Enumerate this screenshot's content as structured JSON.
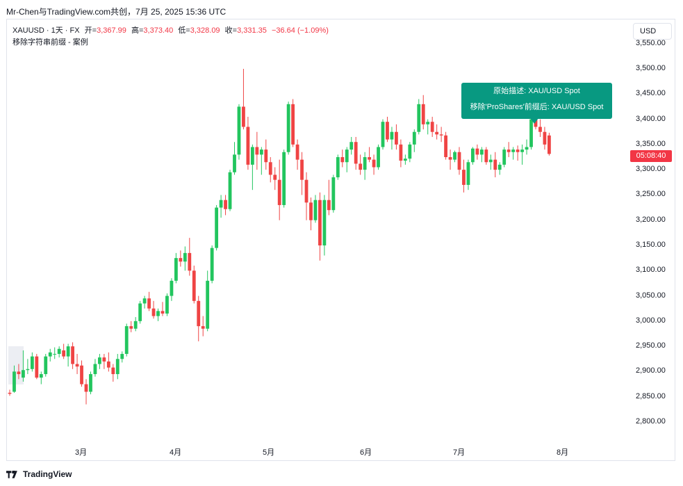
{
  "header": {
    "share_text": "Mr-Chen与TradingView.com共创，7月 25, 2025 15:36 UTC"
  },
  "legend": {
    "symbol": "XAUUSD · 1天 · FX",
    "open_label": "开=",
    "open_value": "3,367.99",
    "high_label": "高=",
    "high_value": "3,373.40",
    "low_label": "低=",
    "low_value": "3,328.09",
    "close_label": "收=",
    "close_value": "3,331.35",
    "change": "−36.64 (−1.09%)",
    "subtitle": "移除字符串前缀 - 案例"
  },
  "currency_button": "USD",
  "last_price_tag": "05:08:40",
  "tooltip": {
    "line1": "原始描述: XAU/USD Spot",
    "line2": "移除'ProShares'前缀后: XAU/USD Spot"
  },
  "footer": {
    "brand": "TradingView"
  },
  "colors": {
    "up": "#089981",
    "down": "#f23645",
    "candle_up": "#22c55e",
    "candle_down": "#ef4444"
  },
  "chart_data": {
    "type": "candlestick",
    "x_tick_labels": [
      "3月",
      "4月",
      "5月",
      "6月",
      "7月",
      "8月"
    ],
    "y_tick_labels": [
      "3,550.00",
      "3,500.00",
      "3,450.00",
      "3,400.00",
      "3,350.00",
      "3,300.00",
      "3,250.00",
      "3,200.00",
      "3,150.00",
      "3,100.00",
      "3,050.00",
      "3,000.00",
      "2,950.00",
      "2,900.00",
      "2,850.00",
      "2,800.00"
    ],
    "ylim": [
      2770,
      3580
    ],
    "candles": [
      [
        2858,
        2864,
        2852,
        2856
      ],
      [
        2860,
        2912,
        2858,
        2900
      ],
      [
        2900,
        2915,
        2885,
        2895
      ],
      [
        2888,
        2942,
        2880,
        2903
      ],
      [
        2903,
        2925,
        2895,
        2905
      ],
      [
        2905,
        2938,
        2900,
        2930
      ],
      [
        2930,
        2935,
        2885,
        2888
      ],
      [
        2888,
        2900,
        2875,
        2895
      ],
      [
        2895,
        2935,
        2890,
        2930
      ],
      [
        2930,
        2945,
        2920,
        2938
      ],
      [
        2935,
        2948,
        2925,
        2935
      ],
      [
        2935,
        2950,
        2928,
        2945
      ],
      [
        2942,
        2955,
        2925,
        2930
      ],
      [
        2930,
        2955,
        2910,
        2950
      ],
      [
        2950,
        2958,
        2905,
        2915
      ],
      [
        2915,
        2935,
        2895,
        2910
      ],
      [
        2912,
        2922,
        2870,
        2875
      ],
      [
        2875,
        2885,
        2835,
        2860
      ],
      [
        2860,
        2900,
        2855,
        2895
      ],
      [
        2895,
        2925,
        2890,
        2915
      ],
      [
        2915,
        2935,
        2905,
        2928
      ],
      [
        2928,
        2935,
        2905,
        2920
      ],
      [
        2920,
        2938,
        2900,
        2908
      ],
      [
        2908,
        2915,
        2880,
        2895
      ],
      [
        2895,
        2935,
        2885,
        2925
      ],
      [
        2925,
        2940,
        2918,
        2935
      ],
      [
        2935,
        2995,
        2930,
        2990
      ],
      [
        2990,
        3000,
        2978,
        2985
      ],
      [
        2985,
        3008,
        2980,
        3000
      ],
      [
        3000,
        3040,
        2995,
        3035
      ],
      [
        3035,
        3050,
        3025,
        3045
      ],
      [
        3045,
        3058,
        3020,
        3025
      ],
      [
        3025,
        3040,
        3005,
        3010
      ],
      [
        3010,
        3025,
        3000,
        3020
      ],
      [
        3020,
        3038,
        3010,
        3015
      ],
      [
        3015,
        3055,
        3010,
        3050
      ],
      [
        3050,
        3085,
        3040,
        3080
      ],
      [
        3080,
        3135,
        3075,
        3125
      ],
      [
        3125,
        3140,
        3108,
        3118
      ],
      [
        3118,
        3148,
        3100,
        3135
      ],
      [
        3135,
        3165,
        3090,
        3100
      ],
      [
        3100,
        3110,
        3035,
        3040
      ],
      [
        3040,
        3050,
        2960,
        2990
      ],
      [
        2990,
        3010,
        2970,
        2985
      ],
      [
        2985,
        3100,
        2980,
        3080
      ],
      [
        3080,
        3150,
        3075,
        3145
      ],
      [
        3145,
        3230,
        3140,
        3225
      ],
      [
        3225,
        3250,
        3205,
        3240
      ],
      [
        3240,
        3250,
        3210,
        3222
      ],
      [
        3222,
        3300,
        3218,
        3295
      ],
      [
        3295,
        3355,
        3290,
        3330
      ],
      [
        3330,
        3430,
        3320,
        3425
      ],
      [
        3425,
        3500,
        3380,
        3385
      ],
      [
        3385,
        3405,
        3300,
        3310
      ],
      [
        3310,
        3350,
        3260,
        3345
      ],
      [
        3345,
        3375,
        3300,
        3330
      ],
      [
        3330,
        3345,
        3290,
        3340
      ],
      [
        3340,
        3360,
        3300,
        3315
      ],
      [
        3315,
        3325,
        3275,
        3290
      ],
      [
        3290,
        3305,
        3260,
        3280
      ],
      [
        3280,
        3320,
        3200,
        3230
      ],
      [
        3230,
        3340,
        3225,
        3335
      ],
      [
        3335,
        3435,
        3330,
        3430
      ],
      [
        3430,
        3440,
        3345,
        3350
      ],
      [
        3350,
        3360,
        3300,
        3320
      ],
      [
        3320,
        3335,
        3250,
        3280
      ],
      [
        3280,
        3295,
        3200,
        3235
      ],
      [
        3235,
        3245,
        3180,
        3200
      ],
      [
        3200,
        3250,
        3195,
        3240
      ],
      [
        3240,
        3255,
        3120,
        3150
      ],
      [
        3150,
        3250,
        3130,
        3240
      ],
      [
        3240,
        3280,
        3210,
        3220
      ],
      [
        3220,
        3290,
        3215,
        3285
      ],
      [
        3285,
        3330,
        3280,
        3325
      ],
      [
        3325,
        3340,
        3305,
        3315
      ],
      [
        3315,
        3345,
        3295,
        3340
      ],
      [
        3340,
        3365,
        3330,
        3355
      ],
      [
        3355,
        3365,
        3300,
        3312
      ],
      [
        3312,
        3330,
        3290,
        3300
      ],
      [
        3300,
        3335,
        3280,
        3325
      ],
      [
        3325,
        3345,
        3315,
        3320
      ],
      [
        3320,
        3330,
        3290,
        3305
      ],
      [
        3305,
        3350,
        3300,
        3345
      ],
      [
        3345,
        3400,
        3340,
        3395
      ],
      [
        3395,
        3405,
        3355,
        3360
      ],
      [
        3360,
        3385,
        3340,
        3375
      ],
      [
        3375,
        3390,
        3340,
        3350
      ],
      [
        3350,
        3360,
        3305,
        3318
      ],
      [
        3318,
        3330,
        3310,
        3322
      ],
      [
        3322,
        3355,
        3315,
        3350
      ],
      [
        3350,
        3380,
        3335,
        3375
      ],
      [
        3375,
        3440,
        3370,
        3430
      ],
      [
        3430,
        3448,
        3380,
        3390
      ],
      [
        3390,
        3400,
        3370,
        3395
      ],
      [
        3395,
        3405,
        3365,
        3375
      ],
      [
        3375,
        3390,
        3360,
        3370
      ],
      [
        3370,
        3385,
        3355,
        3368
      ],
      [
        3368,
        3375,
        3320,
        3325
      ],
      [
        3325,
        3340,
        3300,
        3320
      ],
      [
        3320,
        3338,
        3315,
        3335
      ],
      [
        3335,
        3345,
        3290,
        3300
      ],
      [
        3300,
        3320,
        3255,
        3270
      ],
      [
        3270,
        3320,
        3260,
        3315
      ],
      [
        3315,
        3345,
        3310,
        3342
      ],
      [
        3342,
        3350,
        3320,
        3330
      ],
      [
        3330,
        3345,
        3315,
        3340
      ],
      [
        3340,
        3345,
        3310,
        3315
      ],
      [
        3315,
        3330,
        3300,
        3320
      ],
      [
        3320,
        3335,
        3285,
        3300
      ],
      [
        3300,
        3315,
        3290,
        3310
      ],
      [
        3310,
        3345,
        3305,
        3340
      ],
      [
        3340,
        3355,
        3325,
        3335
      ],
      [
        3335,
        3345,
        3320,
        3340
      ],
      [
        3340,
        3348,
        3318,
        3335
      ],
      [
        3335,
        3350,
        3310,
        3340
      ],
      [
        3340,
        3360,
        3330,
        3345
      ],
      [
        3345,
        3405,
        3340,
        3400
      ],
      [
        3400,
        3430,
        3380,
        3385
      ],
      [
        3385,
        3400,
        3365,
        3375
      ],
      [
        3375,
        3385,
        3340,
        3350
      ],
      [
        3367.99,
        3373.4,
        3328.09,
        3331.35
      ]
    ]
  }
}
